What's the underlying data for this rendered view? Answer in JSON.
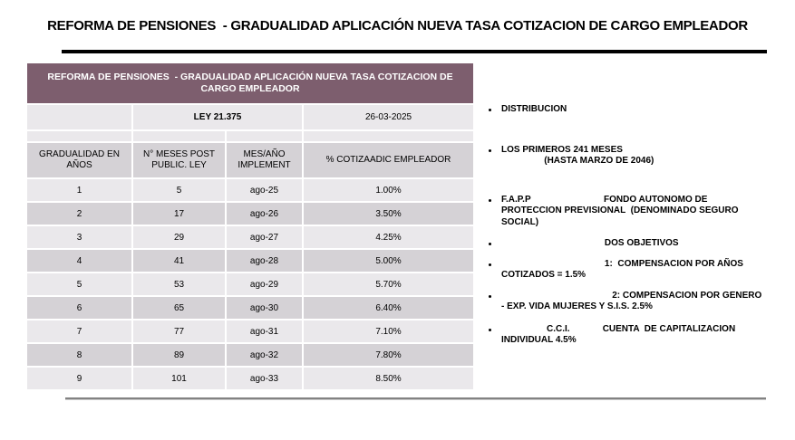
{
  "slide": {
    "title": "REFORMA DE PENSIONES  - GRADUALIDAD APLICACIÓN NUEVA TASA COTIZACION DE CARGO EMPLEADOR"
  },
  "table": {
    "header": "REFORMA DE PENSIONES  - GRADUALIDAD APLICACIÓN NUEVA TASA COTIZACION DE CARGO EMPLEADOR",
    "ley_label": "LEY 21.375",
    "date_label": "26-03-2025",
    "columns": [
      "GRADUALIDAD EN AÑOS",
      "N° MESES POST PUBLIC. LEY",
      "MES/AÑO IMPLEMENT",
      "% COTIZAADIC EMPLEADOR"
    ],
    "rows": [
      [
        "1",
        "5",
        "ago-25",
        "1.00%"
      ],
      [
        "2",
        "17",
        "ago-26",
        "3.50%"
      ],
      [
        "3",
        "29",
        "ago-27",
        "4.25%"
      ],
      [
        "4",
        "41",
        "ago-28",
        "5.00%"
      ],
      [
        "5",
        "53",
        "ago-29",
        "5.70%"
      ],
      [
        "6",
        "65",
        "ago-30",
        "6.40%"
      ],
      [
        "7",
        "77",
        "ago-31",
        "7.10%"
      ],
      [
        "8",
        "89",
        "ago-32",
        "7.80%"
      ],
      [
        "9",
        "101",
        "ago-33",
        "8.50%"
      ]
    ]
  },
  "bullets": {
    "items": [
      {
        "lines": [
          "DISTRIBUCION"
        ]
      },
      {
        "lines": [
          "LOS PRIMEROS 241 MESES",
          "                 (HASTA MARZO DE 2046)"
        ]
      },
      {
        "lines": [
          "F.A.P.P                             FONDO AUTONOMO DE",
          "PROTECCION PREVISIONAL  (DENOMINADO SEGURO",
          "SOCIAL)"
        ]
      },
      {
        "lines": [
          "                                         DOS OBJETIVOS"
        ]
      },
      {
        "lines": [
          "                                         1:  COMPENSACION POR AÑOS",
          "COTIZADOS = 1.5%"
        ]
      },
      {
        "lines": [
          "                                            2: COMPENSACION POR GENERO",
          "- EXP. VIDA MUJERES Y S.I.S. 2.5%"
        ]
      },
      {
        "lines": [
          "                  C.C.I.             CUENTA  DE CAPITALIZACION",
          "INDIVIDUAL 4.5%"
        ]
      }
    ]
  },
  "colors": {
    "header_purple": "#7D5E6E",
    "row_light": "#EAE8EB",
    "row_dark": "#D5D2D6",
    "title_rule": "#000000",
    "bottom_rule": "#828282"
  }
}
